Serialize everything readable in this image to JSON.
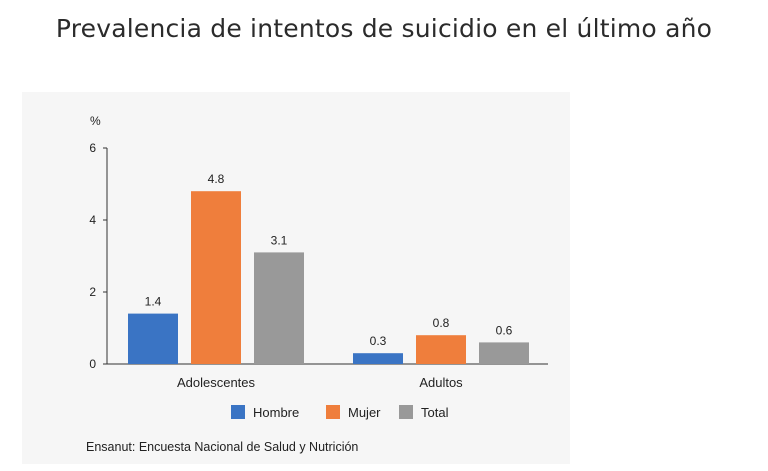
{
  "page": {
    "title": "Prevalencia de intentos de suicidio en el último año",
    "source": "Ensanut: Encuesta Nacional de Salud y Nutrición"
  },
  "chart_data": {
    "type": "bar",
    "title": "Prevalencia de intentos de suicidio en el último año",
    "ylabel": "%",
    "xlabel": "",
    "ylim": [
      0,
      6
    ],
    "yticks": [
      0,
      2,
      4,
      6
    ],
    "yticklabels": [
      "0",
      "2",
      "4",
      "6"
    ],
    "categories": [
      "Adolescentes",
      "Adultos"
    ],
    "series": [
      {
        "name": "Hombre",
        "color": "#3a74c4",
        "values": [
          1.4,
          0.3
        ],
        "labels": [
          "1.4",
          "0.3"
        ]
      },
      {
        "name": "Mujer",
        "color": "#ef7e3c",
        "values": [
          4.8,
          0.8
        ],
        "labels": [
          "4.8",
          "0.8"
        ]
      },
      {
        "name": "Total",
        "color": "#999999",
        "values": [
          3.1,
          0.6
        ],
        "labels": [
          "3.1",
          "0.6"
        ]
      }
    ],
    "legend": "bottom-center",
    "grid": false
  }
}
